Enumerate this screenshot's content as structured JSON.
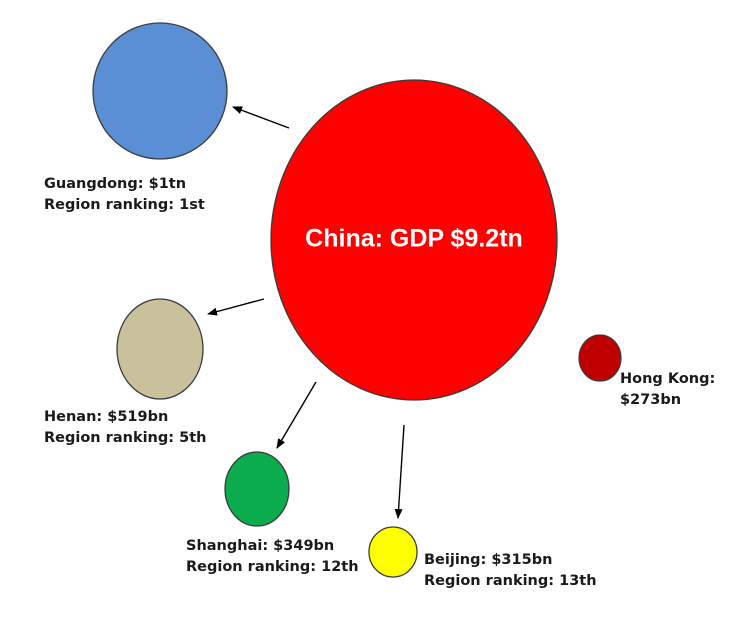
{
  "center": {
    "title": "China: GDP $9.2tn",
    "color": "#ff0000"
  },
  "regions": [
    {
      "key": "guangdong",
      "line1": "Guangdong: $1tn",
      "line2": "Region ranking:  1st",
      "color": "#5a8fd6"
    },
    {
      "key": "henan",
      "line1": "Henan: $519bn",
      "line2": "Region ranking:  5th",
      "color": "#c9c09c"
    },
    {
      "key": "shanghai",
      "line1": "Shanghai: $349bn",
      "line2": "Region ranking: 12th",
      "color": "#0aac4e"
    },
    {
      "key": "beijing",
      "line1": "Beijing: $315bn",
      "line2": "Region ranking: 13th",
      "color": "#ffff00"
    },
    {
      "key": "hongkong",
      "line1": "Hong Kong:",
      "line2": "$273bn",
      "color": "#c00000"
    }
  ]
}
